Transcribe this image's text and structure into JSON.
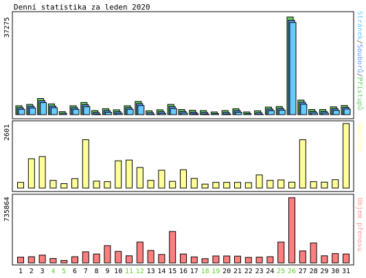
{
  "chart_data": [
    {
      "type": "bar",
      "title": "Denní statistika za leden 2020",
      "ymax_label": "37275",
      "ymax": 37275,
      "legend": [
        {
          "text": "Stránek",
          "color": "#66ccff"
        },
        {
          "text": "/",
          "color": "#555555"
        },
        {
          "text": "Souborů",
          "color": "#6699ff"
        },
        {
          "text": "/",
          "color": "#555555"
        },
        {
          "text": "Přístupů",
          "color": "#66cc66"
        }
      ],
      "legend_placement": "right",
      "categories": [
        "1",
        "2",
        "3",
        "4",
        "5",
        "6",
        "7",
        "8",
        "9",
        "10",
        "11",
        "12",
        "13",
        "14",
        "15",
        "16",
        "17",
        "18",
        "19",
        "20",
        "21",
        "22",
        "23",
        "24",
        "25",
        "26",
        "27",
        "28",
        "29",
        "30",
        "31"
      ],
      "weekend_days": [
        "4",
        "5",
        "11",
        "12",
        "18",
        "19",
        "25",
        "26"
      ],
      "series": [
        {
          "name": "Přístupů",
          "color": "#66cc66",
          "values": [
            3300,
            3800,
            6000,
            4000,
            1100,
            3300,
            4500,
            1500,
            2200,
            1800,
            3300,
            4900,
            1400,
            1800,
            3800,
            1900,
            1600,
            1500,
            1000,
            1500,
            2200,
            1000,
            1400,
            2800,
            3000,
            36300,
            5400,
            1900,
            1900,
            2900,
            3400
          ]
        },
        {
          "name": "Souborů",
          "color": "#6699ff",
          "values": [
            3100,
            3600,
            5700,
            3700,
            1000,
            3100,
            4200,
            1300,
            2000,
            1600,
            3100,
            4600,
            1200,
            1600,
            3500,
            1700,
            1400,
            1300,
            900,
            1300,
            2000,
            900,
            1200,
            2600,
            2800,
            35600,
            5100,
            1700,
            1700,
            2700,
            3200
          ]
        },
        {
          "name": "Stránek",
          "color": "#66ccff",
          "values": [
            3000,
            3500,
            5500,
            3600,
            900,
            3000,
            4000,
            1200,
            1900,
            1500,
            3000,
            4400,
            1100,
            1500,
            3300,
            1600,
            1300,
            1200,
            800,
            1200,
            1900,
            800,
            1100,
            2500,
            2700,
            35300,
            4900,
            1600,
            1600,
            2600,
            3100
          ]
        }
      ]
    },
    {
      "type": "bar",
      "ymax_label": "2601",
      "ymax": 2601,
      "legend": [
        {
          "text": "Návštěv",
          "color": "#ffff99"
        }
      ],
      "categories": [
        "1",
        "2",
        "3",
        "4",
        "5",
        "6",
        "7",
        "8",
        "9",
        "10",
        "11",
        "12",
        "13",
        "14",
        "15",
        "16",
        "17",
        "18",
        "19",
        "20",
        "21",
        "22",
        "23",
        "24",
        "25",
        "26",
        "27",
        "28",
        "29",
        "30",
        "31"
      ],
      "series": [
        {
          "name": "Návštěv",
          "color": "#ffff99",
          "values": [
            230,
            1180,
            1270,
            310,
            180,
            380,
            1950,
            280,
            260,
            1100,
            1130,
            830,
            310,
            720,
            270,
            740,
            390,
            160,
            230,
            230,
            230,
            220,
            530,
            310,
            330,
            240,
            1950,
            260,
            240,
            340,
            2601
          ]
        }
      ]
    },
    {
      "type": "bar",
      "ymax_label": "735864",
      "ymax": 735864,
      "legend": [
        {
          "text": "Objem přenosu",
          "color": "#ff9999"
        }
      ],
      "categories": [
        "1",
        "2",
        "3",
        "4",
        "5",
        "6",
        "7",
        "8",
        "9",
        "10",
        "11",
        "12",
        "13",
        "14",
        "15",
        "16",
        "17",
        "18",
        "19",
        "20",
        "21",
        "22",
        "23",
        "24",
        "25",
        "26",
        "27",
        "28",
        "29",
        "30",
        "31"
      ],
      "series": [
        {
          "name": "Objem přenosu",
          "color": "#ff7f7f",
          "values": [
            65000,
            70000,
            88000,
            50000,
            28000,
            70000,
            125000,
            100000,
            195000,
            130000,
            80000,
            235000,
            140000,
            95000,
            355000,
            100000,
            68000,
            48000,
            78000,
            78000,
            76000,
            62000,
            65000,
            70000,
            235000,
            735864,
            135000,
            225000,
            80000,
            105000,
            100000
          ]
        }
      ]
    }
  ]
}
